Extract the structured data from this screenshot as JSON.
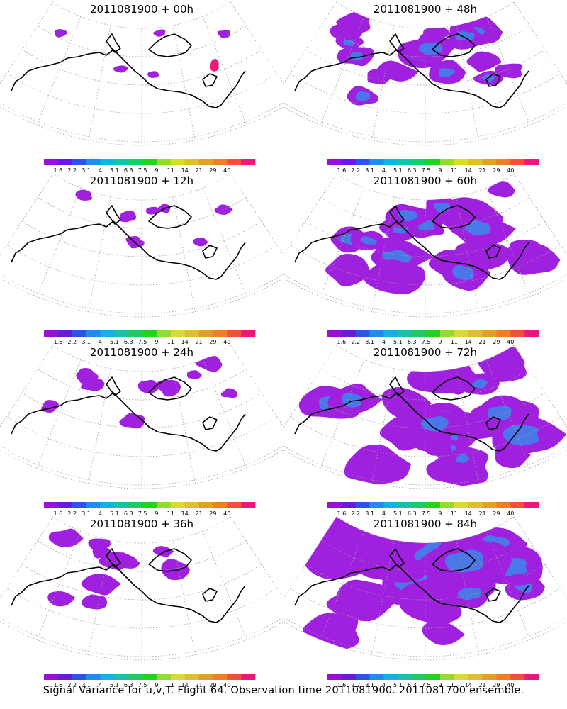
{
  "caption": "Signal Variance for u,v,T. Flight 64. Observation time 2011081900. 2011081700 ensemble.",
  "colors": {
    "colorbar": [
      "#9a10d9",
      "#6a1ae0",
      "#2e52f0",
      "#1d8df5",
      "#0fb4e6",
      "#12c4a8",
      "#18cc66",
      "#20d41c",
      "#93dd2a",
      "#d8dc2c",
      "#e0c02a",
      "#e4a020",
      "#ef7f20",
      "#f64f38",
      "#f2147a"
    ],
    "fill_primary": "#a020e0",
    "fill_high": "#4a78e8",
    "fill_peak": "#ee1a7a",
    "coast": "#000000",
    "grid": "#a0a0a0"
  },
  "chart_data": [
    {
      "type": "heatmap",
      "title": "2011081900 + 00h",
      "level_labels": [
        "1.6",
        "2.2",
        "3.1",
        "4",
        "5.1",
        "6.3",
        "7.5",
        "9",
        "11",
        "14",
        "21",
        "29",
        "40"
      ],
      "intensity": 0.05,
      "peak": true
    },
    {
      "type": "heatmap",
      "title": "2011081900 + 48h",
      "level_labels": [
        "1.6",
        "2.2",
        "3.1",
        "4",
        "5.1",
        "6.3",
        "7.5",
        "9",
        "11",
        "14",
        "21",
        "29",
        "40"
      ],
      "intensity": 0.55,
      "peak": false
    },
    {
      "type": "heatmap",
      "title": "2011081900 + 12h",
      "level_labels": [
        "1.6",
        "2.2",
        "3.1",
        "4",
        "5.1",
        "6.3",
        "7.5",
        "9",
        "11",
        "14",
        "21",
        "29",
        "40"
      ],
      "intensity": 0.12,
      "peak": false
    },
    {
      "type": "heatmap",
      "title": "2011081900 + 60h",
      "level_labels": [
        "1.6",
        "2.2",
        "3.1",
        "4",
        "5.1",
        "6.3",
        "7.5",
        "9",
        "11",
        "14",
        "21",
        "29",
        "40"
      ],
      "intensity": 0.7,
      "peak": false
    },
    {
      "type": "heatmap",
      "title": "2011081900 + 24h",
      "level_labels": [
        "1.6",
        "2.2",
        "3.1",
        "4",
        "5.1",
        "6.3",
        "7.5",
        "9",
        "11",
        "14",
        "21",
        "29",
        "40"
      ],
      "intensity": 0.22,
      "peak": false
    },
    {
      "type": "heatmap",
      "title": "2011081900 + 72h",
      "level_labels": [
        "1.6",
        "2.2",
        "3.1",
        "4",
        "5.1",
        "6.3",
        "7.5",
        "9",
        "11",
        "14",
        "21",
        "29",
        "40"
      ],
      "intensity": 0.82,
      "peak": false
    },
    {
      "type": "heatmap",
      "title": "2011081900 + 36h",
      "level_labels": [
        "1.6",
        "2.2",
        "3.1",
        "4",
        "5.1",
        "6.3",
        "7.5",
        "9",
        "11",
        "14",
        "21",
        "29",
        "40"
      ],
      "intensity": 0.35,
      "peak": false
    },
    {
      "type": "heatmap",
      "title": "2011081900 + 84h",
      "level_labels": [
        "1.6",
        "2.2",
        "3.1",
        "4",
        "5.1",
        "6.3",
        "7.5",
        "9",
        "11",
        "14",
        "21",
        "29",
        "40"
      ],
      "intensity": 0.95,
      "peak": false
    }
  ]
}
